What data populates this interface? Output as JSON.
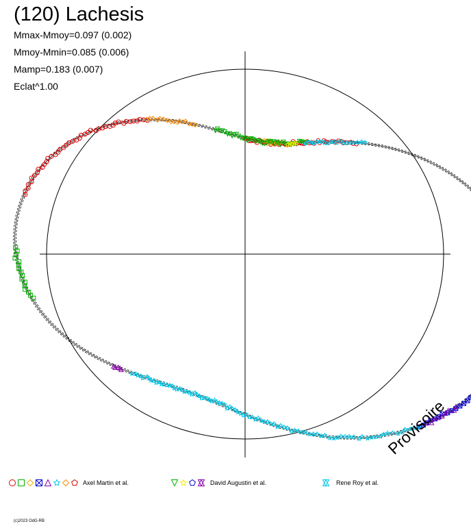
{
  "header": {
    "title": "(120) Lachesis",
    "stats": [
      "Mmax-Mmoy=0.097 (0.002)",
      "Mmoy-Mmin=0.085 (0.006)",
      "Mamp=0.183 (0.007)",
      "Eclat^1.00"
    ]
  },
  "watermark": "Provisoire",
  "copyright": "(c)2023 OdG-RB",
  "chart_data": {
    "type": "scatter",
    "title": "(120) Lachesis",
    "projection": "polar lightcurve",
    "grid": false,
    "legend_position": "bottom",
    "reference_circle": true,
    "model_curve_mag_variation": 0.09,
    "arcs": [
      {
        "series": 0,
        "marker": "circle",
        "color": "#e00000",
        "phase_from": 0.0,
        "phase_to": 0.055
      },
      {
        "series": 0,
        "marker": "diamond",
        "color": "#f0b000",
        "phase_from": 0.025,
        "phase_to": 0.045
      },
      {
        "series": 0,
        "marker": "circle",
        "color": "#e00000",
        "phase_from": 0.055,
        "phase_to": 0.12
      },
      {
        "series": 0,
        "marker": "x-square",
        "color": "#0000cc",
        "phase_from": 0.3,
        "phase_to": 0.38
      },
      {
        "series": 0,
        "marker": "triangle",
        "color": "#8800aa",
        "phase_from": 0.355,
        "phase_to": 0.375
      },
      {
        "series": 0,
        "marker": "star",
        "color": "#00c8e8",
        "phase_from": 0.38,
        "phase_to": 0.615
      },
      {
        "series": 0,
        "marker": "triangle",
        "color": "#8800aa",
        "phase_from": 0.625,
        "phase_to": 0.632
      },
      {
        "series": 0,
        "marker": "square",
        "color": "#00b000",
        "phase_from": 0.715,
        "phase_to": 0.755
      },
      {
        "series": 0,
        "marker": "circle",
        "color": "#e00000",
        "phase_from": 0.795,
        "phase_to": 0.905
      },
      {
        "series": 0,
        "marker": "diamond",
        "color": "#ff8c00",
        "phase_from": 0.905,
        "phase_to": 0.945
      },
      {
        "series": 1,
        "marker": "triangle-down",
        "color": "#00b000",
        "phase_from": 0.965,
        "phase_to": 1.0
      },
      {
        "series": 1,
        "marker": "triangle-down",
        "color": "#00b000",
        "phase_from": 0.0,
        "phase_to": 0.075
      },
      {
        "series": 1,
        "marker": "star",
        "color": "#f0f000",
        "phase_from": 0.055,
        "phase_to": 0.065
      },
      {
        "series": 2,
        "marker": "star",
        "color": "#00c8e8",
        "phase_from": 0.075,
        "phase_to": 0.125
      },
      {
        "series": 1,
        "marker": "x-square",
        "color": "#0000cc",
        "phase_from": 0.238,
        "phase_to": 0.252
      }
    ],
    "legend": [
      {
        "name": "Axel Martin et al.",
        "markers": [
          {
            "shape": "circle",
            "color": "#e00000"
          },
          {
            "shape": "square",
            "color": "#00b000"
          },
          {
            "shape": "diamond",
            "color": "#f0b000"
          },
          {
            "shape": "x-square",
            "color": "#0000cc"
          },
          {
            "shape": "triangle",
            "color": "#8800aa"
          },
          {
            "shape": "star",
            "color": "#00c8e8"
          },
          {
            "shape": "diamond",
            "color": "#ff8c00"
          },
          {
            "shape": "pentagon",
            "color": "#e00000"
          }
        ]
      },
      {
        "name": "David Augustin et al.",
        "markers": [
          {
            "shape": "triangle-down",
            "color": "#00b000"
          },
          {
            "shape": "star",
            "color": "#f0f000"
          },
          {
            "shape": "pentagon",
            "color": "#0000cc"
          },
          {
            "shape": "trefoil",
            "color": "#8800aa"
          }
        ]
      },
      {
        "name": "Rene Roy et al.",
        "markers": [
          {
            "shape": "trefoil",
            "color": "#00c8e8"
          }
        ]
      }
    ]
  }
}
